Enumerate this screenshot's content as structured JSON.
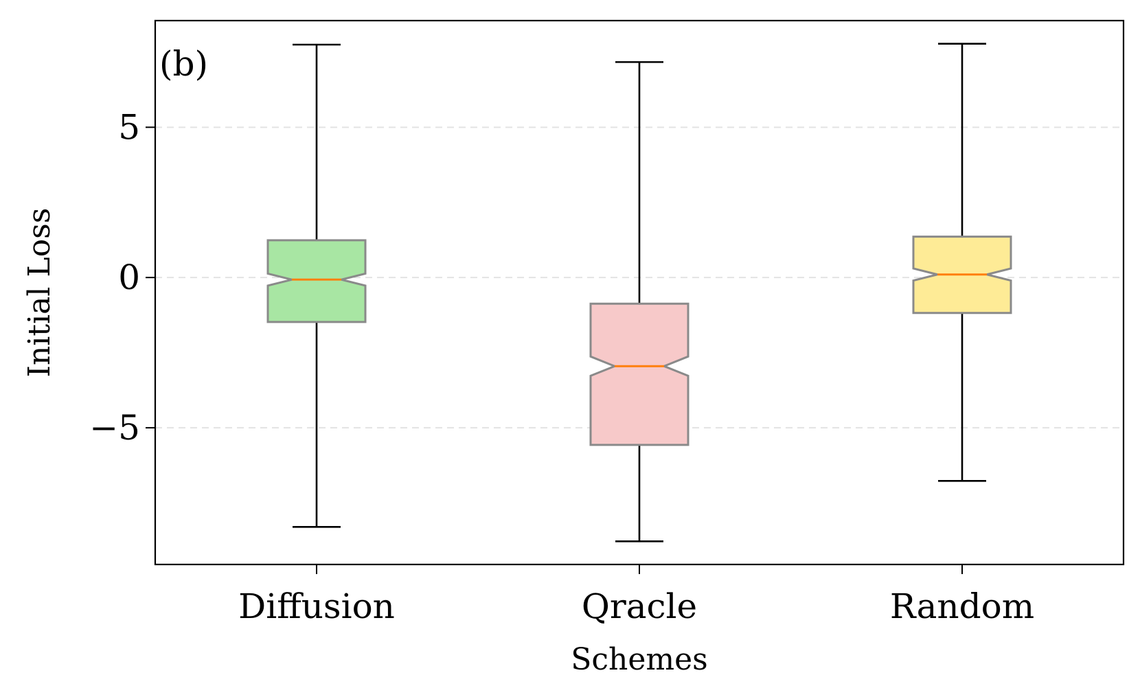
{
  "chart_data": {
    "type": "boxplot",
    "notched": true,
    "panel_label": "(b)",
    "xlabel": "Schemes",
    "ylabel": "Initial Loss",
    "ylim": [
      -9.55,
      8.55
    ],
    "yticks": [
      5,
      0,
      -5
    ],
    "ytick_labels": [
      "5",
      "0",
      "−5"
    ],
    "grid": "horizontal-dashed",
    "series": [
      {
        "name": "Diffusion",
        "whisker_low": -8.3,
        "q1": -1.48,
        "median": -0.07,
        "q3": 1.24,
        "whisker_high": 7.75,
        "notch_low": -0.27,
        "notch_high": 0.13,
        "color": "#a8e6a3"
      },
      {
        "name": "Qracle",
        "whisker_low": -8.78,
        "q1": -5.57,
        "median": -2.95,
        "q3": -0.87,
        "whisker_high": 7.17,
        "notch_low": -3.27,
        "notch_high": -2.63,
        "color": "#f7c9c9"
      },
      {
        "name": "Random",
        "whisker_low": -6.77,
        "q1": -1.18,
        "median": 0.1,
        "q3": 1.36,
        "whisker_high": 7.78,
        "notch_low": -0.1,
        "notch_high": 0.3,
        "color": "#feeb96"
      }
    ]
  }
}
